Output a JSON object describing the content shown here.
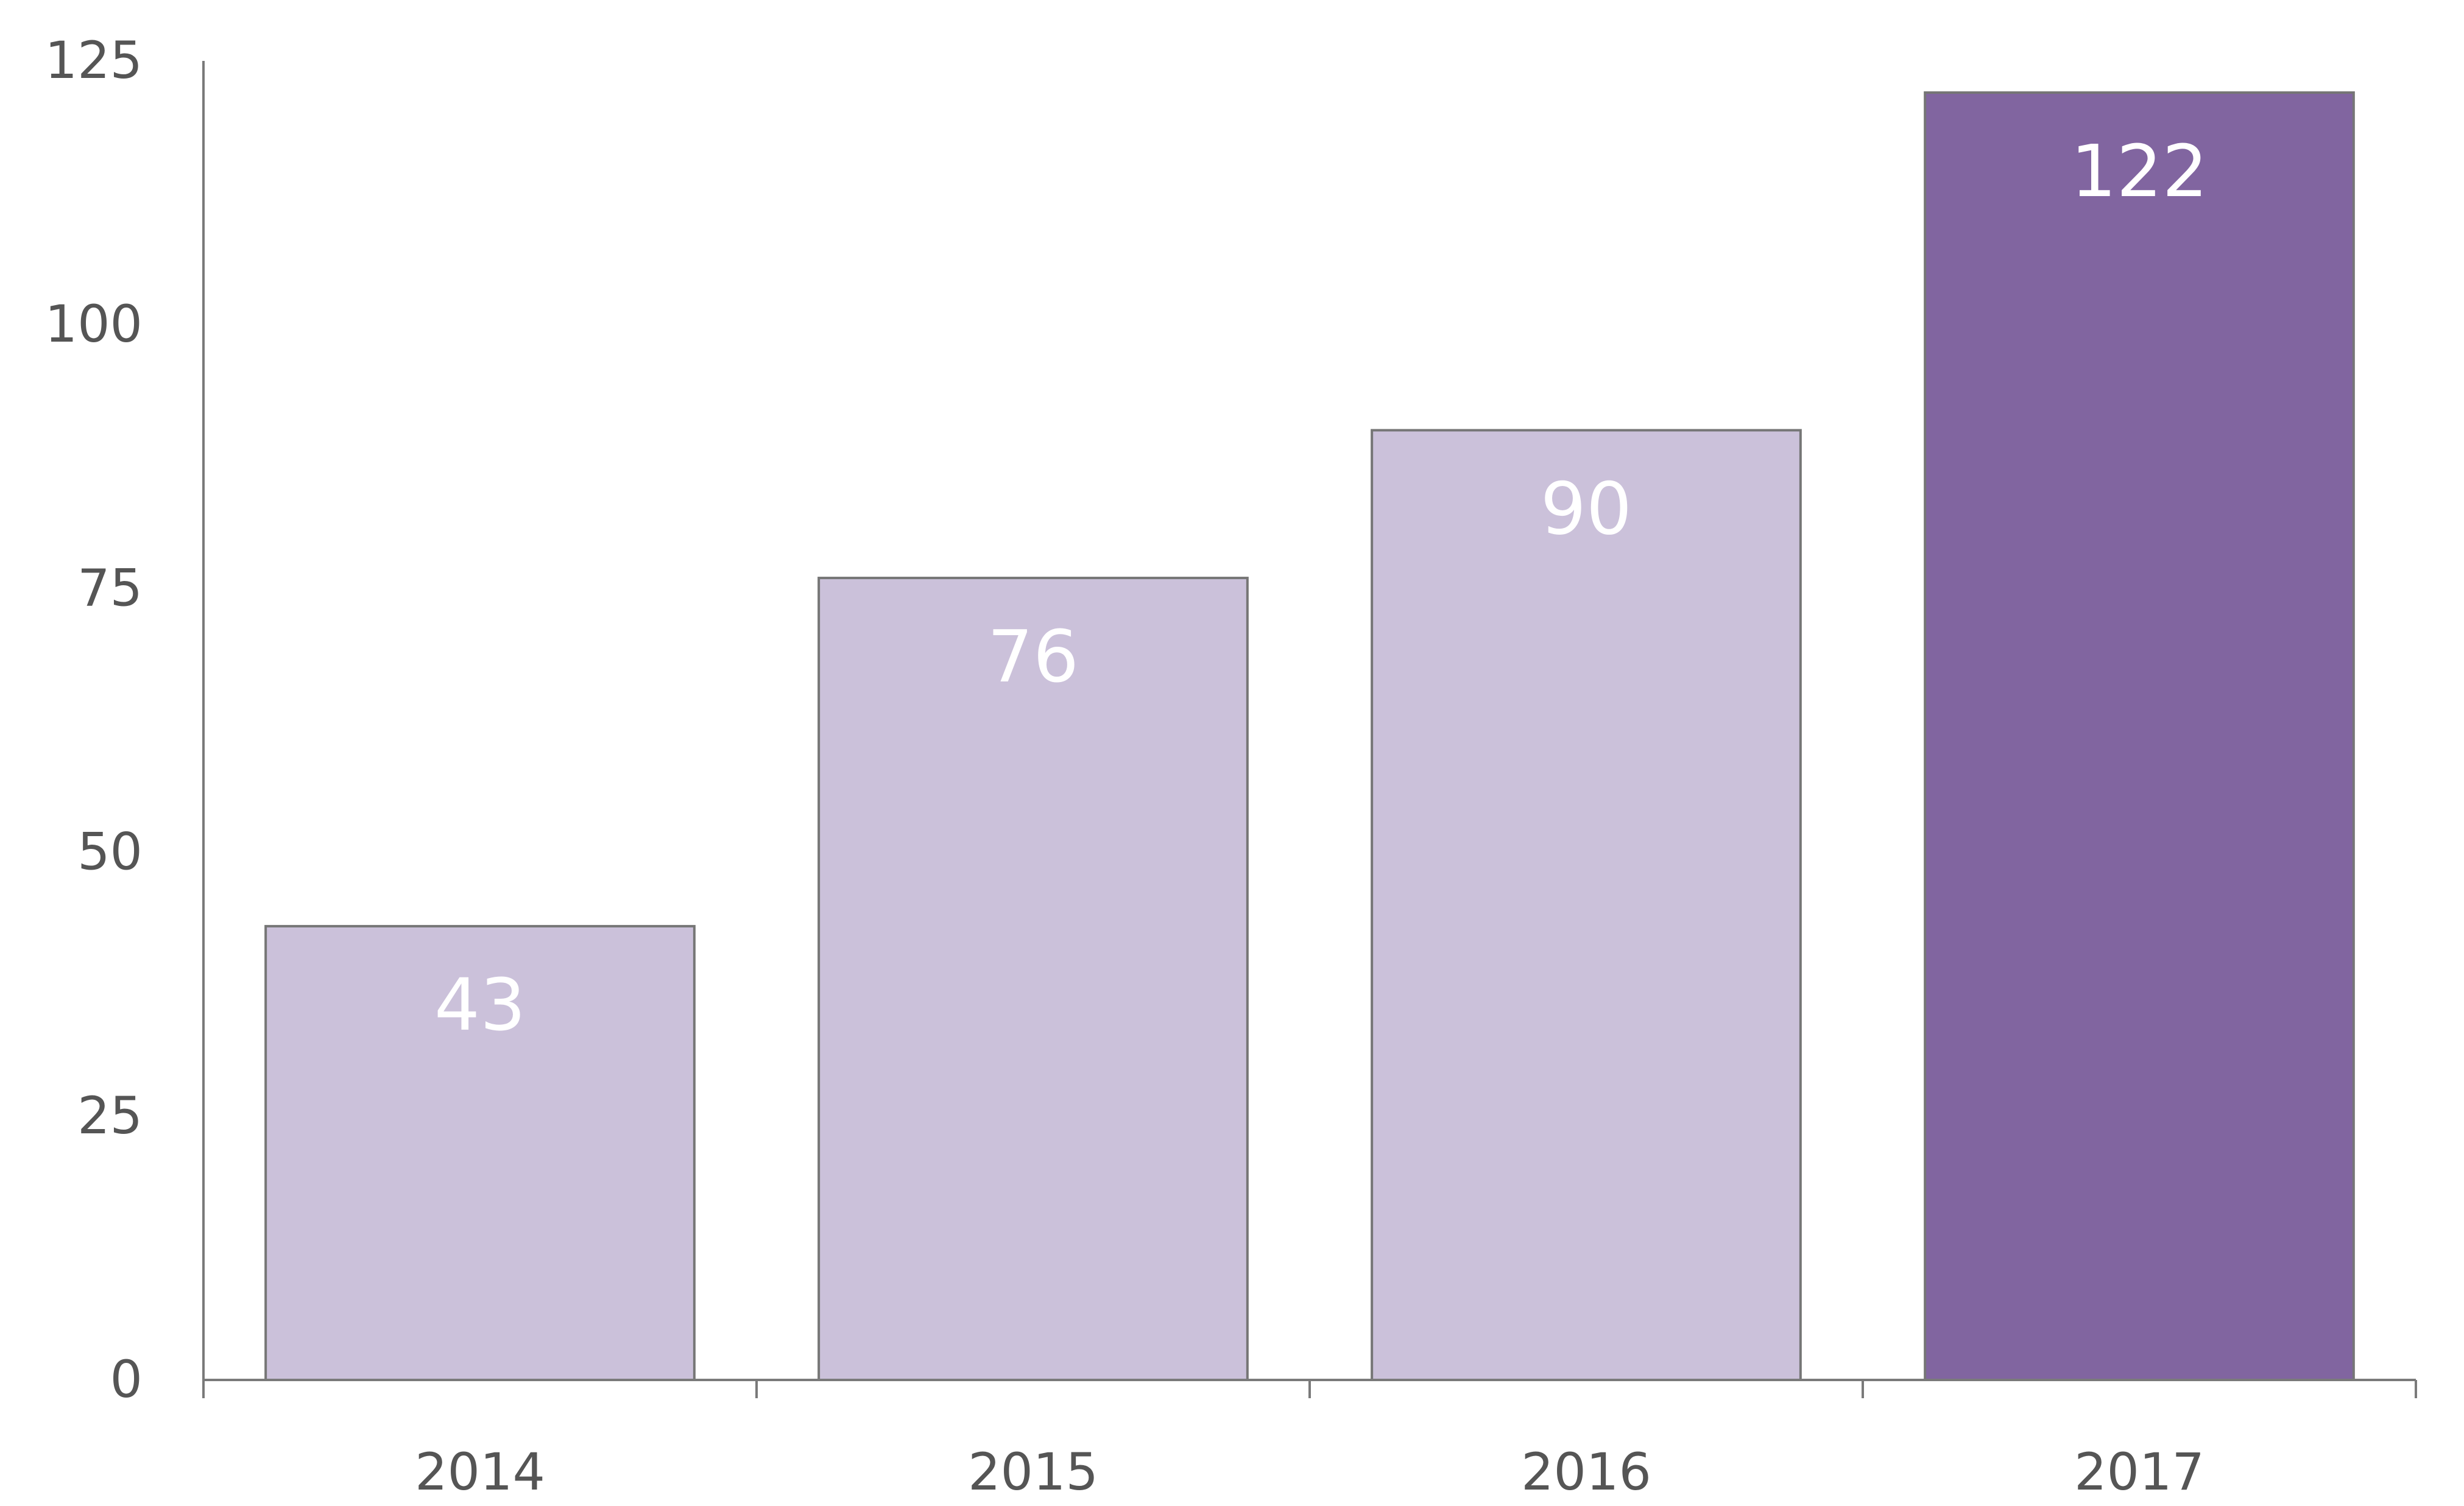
{
  "chart_data": {
    "type": "bar",
    "title": "",
    "xlabel": "",
    "ylabel": "",
    "categories": [
      "2014",
      "2015",
      "2016",
      "2017"
    ],
    "values": [
      43,
      76,
      90,
      122
    ],
    "data_labels": [
      "43",
      "76",
      "90",
      "122"
    ],
    "ylim": [
      0,
      125
    ],
    "yticks": [
      0,
      25,
      50,
      75,
      100,
      125
    ],
    "ytick_labels": [
      "0",
      "25",
      "50",
      "75",
      "100",
      "125"
    ],
    "grid": false,
    "legend": "none",
    "colors": {
      "bar": "#cbc1da",
      "highlight_bar": "#8165a0",
      "highlight_category": "2017",
      "axis": "#7a7a7a",
      "tick_text": "#555555",
      "data_label_text": "#ffffff"
    }
  }
}
